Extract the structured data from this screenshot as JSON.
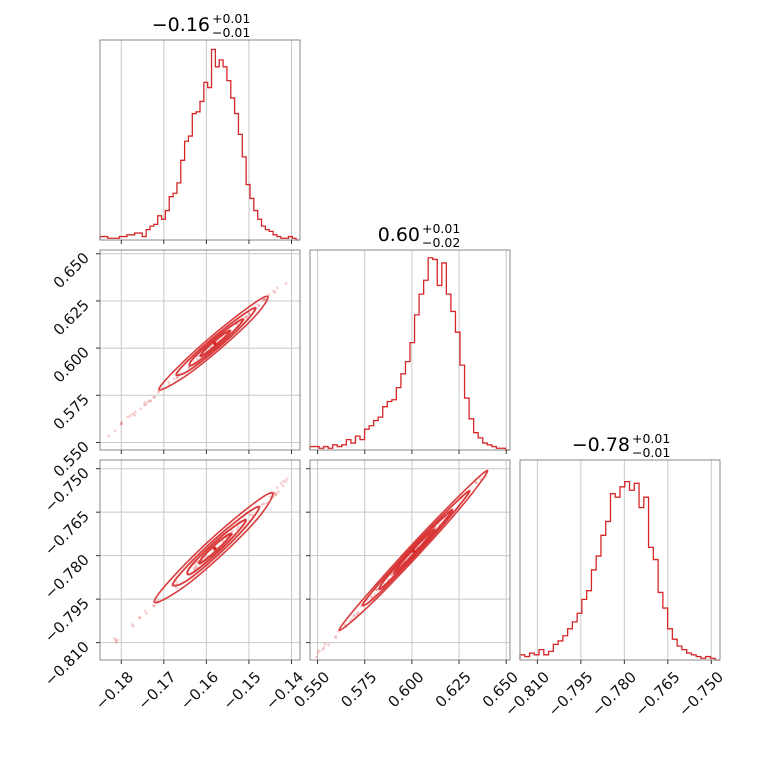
{
  "chart_data": {
    "type": "corner",
    "color": "#d62728",
    "grid": true,
    "parameters": [
      {
        "title_value": "−0.16",
        "title_plus": "+0.01",
        "title_minus": "−0.01",
        "range": [
          -0.185,
          -0.138
        ],
        "ticks": [
          -0.18,
          -0.17,
          -0.16,
          -0.15,
          -0.14
        ],
        "tick_labels": [
          "−0.18",
          "−0.17",
          "−0.16",
          "−0.15",
          "−0.14"
        ],
        "hist": {
          "counts": [
            2,
            2,
            1,
            1,
            1,
            2,
            2,
            3,
            3,
            4,
            4,
            2,
            6,
            8,
            9,
            14,
            12,
            17,
            25,
            27,
            33,
            46,
            57,
            60,
            73,
            74,
            80,
            91,
            88,
            110,
            100,
            104,
            100,
            92,
            82,
            73,
            61,
            48,
            32,
            24,
            17,
            12,
            8,
            6,
            5,
            3,
            2,
            1,
            1,
            2,
            1,
            0
          ],
          "ymax": 112
        }
      },
      {
        "title_value": "0.60",
        "title_plus": "+0.01",
        "title_minus": "−0.02",
        "range": [
          0.546,
          0.652
        ],
        "ticks": [
          0.55,
          0.575,
          0.6,
          0.625,
          0.65
        ],
        "tick_labels": [
          "0.550",
          "0.575",
          "0.600",
          "0.625",
          "0.650"
        ],
        "hist": {
          "counts": [
            2,
            2,
            1,
            2,
            1,
            3,
            2,
            3,
            6,
            4,
            8,
            6,
            12,
            14,
            17,
            19,
            25,
            28,
            29,
            36,
            44,
            51,
            62,
            78,
            90,
            98,
            111,
            110,
            95,
            108,
            90,
            80,
            68,
            49,
            30,
            18,
            10,
            7,
            4,
            3,
            2,
            1,
            1,
            0
          ],
          "ymax": 112
        }
      },
      {
        "title_value": "−0.78",
        "title_plus": "+0.01",
        "title_minus": "−0.01",
        "range": [
          -0.816,
          -0.747
        ],
        "ticks": [
          -0.81,
          -0.795,
          -0.78,
          -0.765,
          -0.75
        ],
        "tick_labels": [
          "−0.810",
          "−0.795",
          "−0.780",
          "−0.765",
          "−0.750"
        ],
        "hist": {
          "counts": [
            3,
            2,
            4,
            3,
            6,
            3,
            5,
            9,
            11,
            14,
            18,
            22,
            27,
            35,
            40,
            52,
            60,
            72,
            80,
            96,
            94,
            100,
            103,
            98,
            102,
            88,
            94,
            65,
            58,
            39,
            30,
            18,
            12,
            8,
            6,
            4,
            3,
            2,
            1,
            2,
            1,
            0
          ],
          "ymax": 112
        }
      }
    ],
    "pairs": [
      {
        "x": 0,
        "y": 1,
        "slope": 1.96,
        "center": [
          -0.158,
          0.6025
        ],
        "sd_major": 0.0125,
        "sd_minor": 0.0011,
        "extent": [
          -0.183,
          -0.141
        ]
      },
      {
        "x": 0,
        "y": 2,
        "slope": 1.37,
        "center": [
          -0.158,
          -0.7775
        ],
        "sd_major": 0.0105,
        "sd_minor": 0.0012,
        "extent": [
          -0.183,
          -0.141
        ]
      },
      {
        "x": 1,
        "y": 2,
        "slope": 0.7,
        "center": [
          0.601,
          -0.7785
        ],
        "sd_major": 0.0215,
        "sd_minor": 0.0011,
        "extent": [
          0.548,
          0.645
        ]
      }
    ]
  }
}
